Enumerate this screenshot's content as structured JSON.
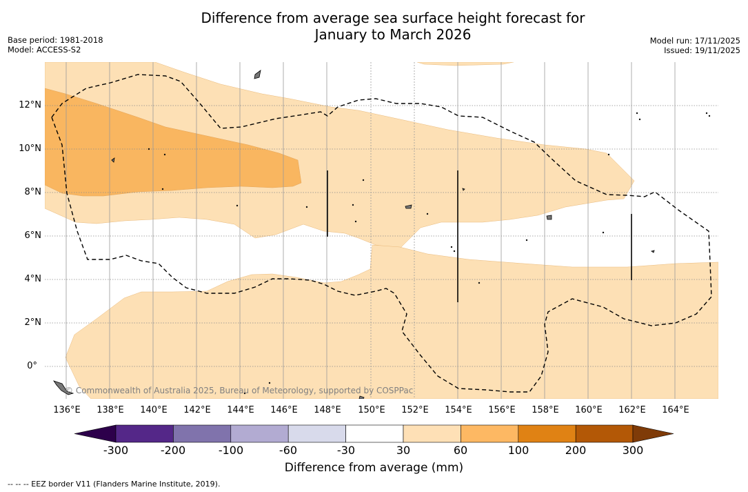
{
  "title_line1": "Difference from average sea surface height forecast for",
  "title_line2": "January to March 2026",
  "meta_left": {
    "base_period": "Base period: 1981-2018",
    "model": "Model: ACCESS-S2"
  },
  "meta_right": {
    "model_run": "Model run: 17/11/2025",
    "issued": "Issued: 19/11/2025"
  },
  "latitude_labels": [
    "12°N",
    "10°N",
    "8°N",
    "6°N",
    "4°N",
    "2°N",
    "0°"
  ],
  "longitude_labels": [
    "136°E",
    "138°E",
    "140°E",
    "142°E",
    "144°E",
    "146°E",
    "148°E",
    "150°E",
    "152°E",
    "154°E",
    "156°E",
    "158°E",
    "160°E",
    "162°E",
    "164°E"
  ],
  "credit": "© Commonwealth of Australia 2025, Bureau of Meteorology, supported by COSPPac",
  "colorbar": {
    "title": "Difference from average (mm)",
    "tick_labels": [
      "-300",
      "-200",
      "-100",
      "-60",
      "-30",
      "30",
      "60",
      "100",
      "200",
      "300"
    ],
    "colors": [
      "#2d004b",
      "#542788",
      "#8073ac",
      "#b2abd2",
      "#d8daeb",
      "#ffffff",
      "#fee0b6",
      "#fdb863",
      "#e08214",
      "#b35806",
      "#7f3b08"
    ]
  },
  "legend_note": "--  --  -- EEZ border V11 (Flanders Marine Institute, 2019)."
}
